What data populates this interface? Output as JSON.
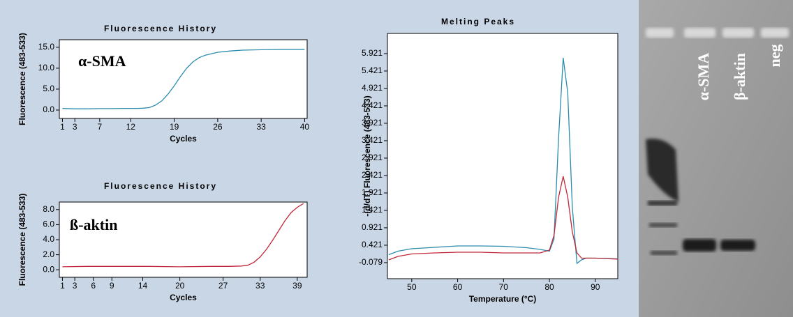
{
  "chart_data": [
    {
      "type": "line",
      "title": "Fluorescence History",
      "annotation": "α-SMA",
      "x_label": "Cycles",
      "y_label": "Fluorescence (483-533)",
      "x": [
        1,
        3,
        5,
        7,
        9,
        11,
        13,
        14,
        15,
        16,
        17,
        18,
        19,
        20,
        21,
        22,
        23,
        24,
        26,
        28,
        30,
        33,
        36,
        40
      ],
      "series": [
        {
          "color": "#2a8cad",
          "values": [
            0.4,
            0.3,
            0.3,
            0.35,
            0.35,
            0.4,
            0.4,
            0.45,
            0.6,
            1.2,
            2.2,
            3.8,
            5.8,
            8.0,
            10.0,
            11.5,
            12.5,
            13.1,
            13.8,
            14.1,
            14.3,
            14.4,
            14.5,
            14.5
          ]
        }
      ],
      "xlim": [
        0.5,
        40.4
      ],
      "xticks": [
        1,
        3,
        7,
        12,
        19,
        26,
        33,
        40
      ],
      "ylim": [
        -2,
        16.8
      ],
      "yticks": [
        {
          "value": 0,
          "label": "0.0"
        },
        {
          "value": 5,
          "label": "5.0"
        },
        {
          "value": 10,
          "label": "10.0"
        },
        {
          "value": 15,
          "label": "15.0"
        }
      ]
    },
    {
      "type": "line",
      "title": "Fluorescence History",
      "annotation": "ß-aktin",
      "x_label": "Cycles",
      "y_label": "Fluorescence (483-533)",
      "x": [
        1,
        5,
        10,
        15,
        20,
        25,
        28,
        30,
        31,
        32,
        33,
        34,
        35,
        36,
        37,
        38,
        39,
        40
      ],
      "series": [
        {
          "color": "#c0283a",
          "values": [
            0.4,
            0.45,
            0.45,
            0.45,
            0.4,
            0.45,
            0.45,
            0.5,
            0.6,
            1.0,
            1.7,
            2.7,
            3.9,
            5.2,
            6.5,
            7.6,
            8.3,
            8.8
          ]
        }
      ],
      "xlim": [
        0.5,
        40.6
      ],
      "xticks": [
        1,
        3,
        6,
        9,
        14,
        20,
        27,
        33,
        39
      ],
      "ylim": [
        -1,
        9
      ],
      "yticks": [
        {
          "value": 0,
          "label": "0.0"
        },
        {
          "value": 2,
          "label": "2.0"
        },
        {
          "value": 4,
          "label": "4.0"
        },
        {
          "value": 6,
          "label": "6.0"
        },
        {
          "value": 8,
          "label": "8.0"
        }
      ]
    },
    {
      "type": "line",
      "title": "Melting Peaks",
      "x_label": "Temperature (°C)",
      "y_label": "-(d/dT) Fluorescence (483-533)",
      "x": [
        45,
        47,
        50,
        55,
        60,
        65,
        70,
        75,
        78,
        80,
        81,
        82,
        83,
        84,
        85,
        86,
        87,
        88,
        90,
        95
      ],
      "series": [
        {
          "color": "#2a8cad",
          "values": [
            0.15,
            0.25,
            0.32,
            0.36,
            0.4,
            0.4,
            0.39,
            0.35,
            0.3,
            0.25,
            0.6,
            3.5,
            5.8,
            4.8,
            1.5,
            -0.1,
            0.0,
            0.05,
            0.05,
            0.03
          ]
        },
        {
          "color": "#c0283a",
          "values": [
            0.0,
            0.1,
            0.17,
            0.2,
            0.22,
            0.22,
            0.2,
            0.2,
            0.2,
            0.28,
            0.7,
            1.8,
            2.4,
            1.8,
            0.8,
            0.2,
            0.05,
            0.05,
            0.05,
            0.02
          ]
        }
      ],
      "xlim": [
        44.7,
        94.9
      ],
      "xticks": [
        50,
        60,
        70,
        80,
        90
      ],
      "ylim": [
        -0.54,
        6.5
      ],
      "yticks": [
        -0.079,
        0.421,
        0.921,
        1.421,
        1.921,
        2.421,
        2.921,
        3.421,
        3.921,
        4.421,
        4.921,
        5.421,
        5.921
      ]
    }
  ],
  "gel": {
    "lanes": [
      "α-SMA",
      "β-aktin",
      "neg"
    ]
  }
}
